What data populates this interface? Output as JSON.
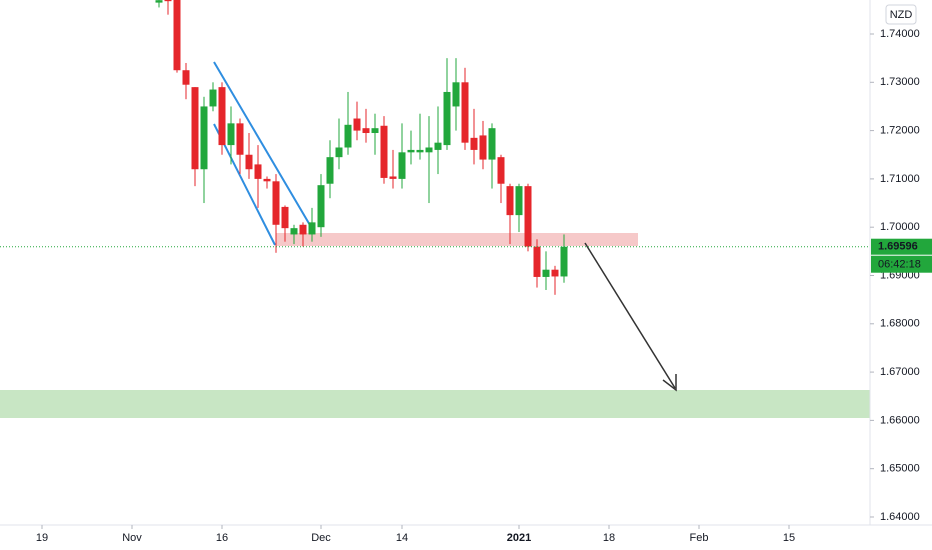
{
  "chart_data": {
    "type": "candlestick",
    "currency": "NZD",
    "up_color": "#22a73c",
    "down_color": "#e5262b",
    "x": [
      13,
      14,
      15,
      16,
      17,
      18,
      19,
      20,
      21,
      22,
      23,
      24,
      25,
      26,
      27,
      28,
      29,
      30,
      31,
      32,
      33,
      34,
      35,
      36,
      37,
      38,
      39,
      40,
      41,
      42,
      43,
      44,
      45,
      46,
      47,
      48,
      49,
      50,
      51,
      52,
      53,
      54,
      55,
      56,
      57,
      58
    ],
    "open": [
      1.7465,
      1.7472,
      1.748,
      1.7325,
      1.729,
      1.712,
      1.725,
      1.729,
      1.717,
      1.7215,
      1.715,
      1.713,
      1.71,
      1.7095,
      1.7042,
      1.6985,
      1.7005,
      1.6985,
      1.7,
      1.709,
      1.7145,
      1.7165,
      1.7225,
      1.7205,
      1.7195,
      1.721,
      1.7105,
      1.71,
      1.7155,
      1.7155,
      1.7155,
      1.716,
      1.717,
      1.725,
      1.73,
      1.7185,
      1.719,
      1.714,
      1.7145,
      1.7085,
      1.7025,
      1.7085,
      1.696,
      1.6897,
      1.6912,
      1.6898
    ],
    "high": [
      1.748,
      1.749,
      1.749,
      1.734,
      1.729,
      1.727,
      1.73,
      1.73,
      1.725,
      1.7225,
      1.7195,
      1.717,
      1.7105,
      1.711,
      1.7045,
      1.7005,
      1.701,
      1.704,
      1.711,
      1.718,
      1.7225,
      1.728,
      1.726,
      1.7245,
      1.7235,
      1.723,
      1.716,
      1.7215,
      1.72,
      1.7235,
      1.723,
      1.725,
      1.735,
      1.735,
      1.733,
      1.7245,
      1.722,
      1.7215,
      1.715,
      1.709,
      1.709,
      1.709,
      1.6975,
      1.695,
      1.692,
      1.6985
    ],
    "low": [
      1.7455,
      1.744,
      1.732,
      1.7265,
      1.7085,
      1.705,
      1.724,
      1.715,
      1.713,
      1.711,
      1.71,
      1.704,
      1.708,
      1.6947,
      1.697,
      1.6965,
      1.696,
      1.697,
      1.698,
      1.706,
      1.712,
      1.715,
      1.718,
      1.7175,
      1.715,
      1.709,
      1.708,
      1.708,
      1.713,
      1.714,
      1.705,
      1.711,
      1.716,
      1.72,
      1.716,
      1.713,
      1.712,
      1.708,
      1.705,
      1.6965,
      1.699,
      1.695,
      1.6875,
      1.687,
      1.686,
      1.6885
    ],
    "close": [
      1.747,
      1.7468,
      1.7325,
      1.7295,
      1.712,
      1.725,
      1.7285,
      1.717,
      1.7215,
      1.715,
      1.712,
      1.71,
      1.7095,
      1.7005,
      1.6998,
      1.6998,
      1.6985,
      1.701,
      1.7087,
      1.7145,
      1.7165,
      1.7212,
      1.72,
      1.7195,
      1.7205,
      1.7102,
      1.71,
      1.7155,
      1.716,
      1.716,
      1.7165,
      1.7175,
      1.728,
      1.73,
      1.7175,
      1.716,
      1.714,
      1.7205,
      1.709,
      1.7025,
      1.7085,
      1.696,
      1.6897,
      1.6912,
      1.6898,
      1.69596
    ],
    "xlim": [
      -4.667,
      92
    ],
    "xticks": [
      {
        "value": 0,
        "label": "19"
      },
      {
        "value": 10,
        "label": "Nov"
      },
      {
        "value": 20,
        "label": "16"
      },
      {
        "value": 31,
        "label": "Dec"
      },
      {
        "value": 40,
        "label": "14"
      },
      {
        "value": 53,
        "label": "2021"
      },
      {
        "value": 63,
        "label": "18"
      },
      {
        "value": 73,
        "label": "Feb"
      },
      {
        "value": 83,
        "label": "15"
      }
    ],
    "ylim": [
      1.63834,
      1.74704
    ],
    "yticks": [
      {
        "value": 1.74,
        "label": "1.74000"
      },
      {
        "value": 1.73,
        "label": "1.73000"
      },
      {
        "value": 1.72,
        "label": "1.72000"
      },
      {
        "value": 1.71,
        "label": "1.71000"
      },
      {
        "value": 1.7,
        "label": "1.70000"
      },
      {
        "value": 1.69,
        "label": "1.69000"
      },
      {
        "value": 1.68,
        "label": "1.68000"
      },
      {
        "value": 1.67,
        "label": "1.67000"
      },
      {
        "value": 1.66,
        "label": "1.66000"
      },
      {
        "value": 1.65,
        "label": "1.65000"
      },
      {
        "value": 1.64,
        "label": "1.64000"
      }
    ],
    "last_price": {
      "value": 1.69596,
      "label": "1.69596"
    },
    "countdown": "06:42:18"
  }
}
